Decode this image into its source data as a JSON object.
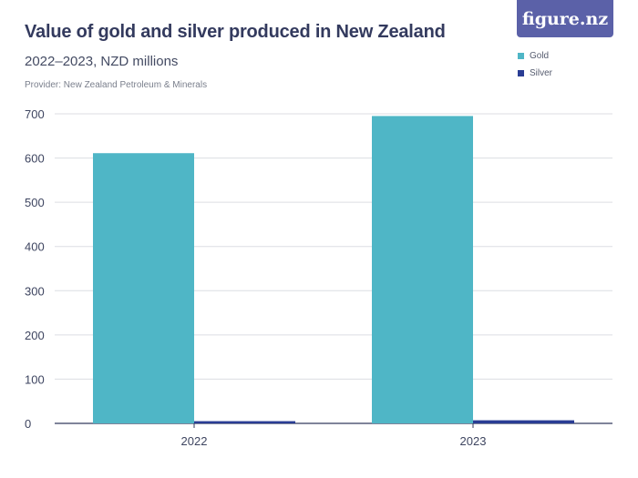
{
  "title": "Value of gold and silver produced in New Zealand",
  "subtitle": "2022–2023, NZD millions",
  "provider": "Provider: New Zealand Petroleum & Minerals",
  "logo": "figure.nz",
  "colors": {
    "gold": "#4fb6c6",
    "silver": "#2a3d94",
    "logo_bg": "#5b61a8",
    "grid": "#dcdee3"
  },
  "chart_data": {
    "type": "bar",
    "categories": [
      "2022",
      "2023"
    ],
    "series": [
      {
        "name": "Gold",
        "values": [
          611,
          695
        ]
      },
      {
        "name": "Silver",
        "values": [
          5,
          7
        ]
      }
    ],
    "ylim": [
      0,
      700
    ],
    "yticks": [
      0,
      100,
      200,
      300,
      400,
      500,
      600,
      700
    ],
    "xlabel": "",
    "ylabel": "",
    "grid": true,
    "legend": "top-right"
  }
}
